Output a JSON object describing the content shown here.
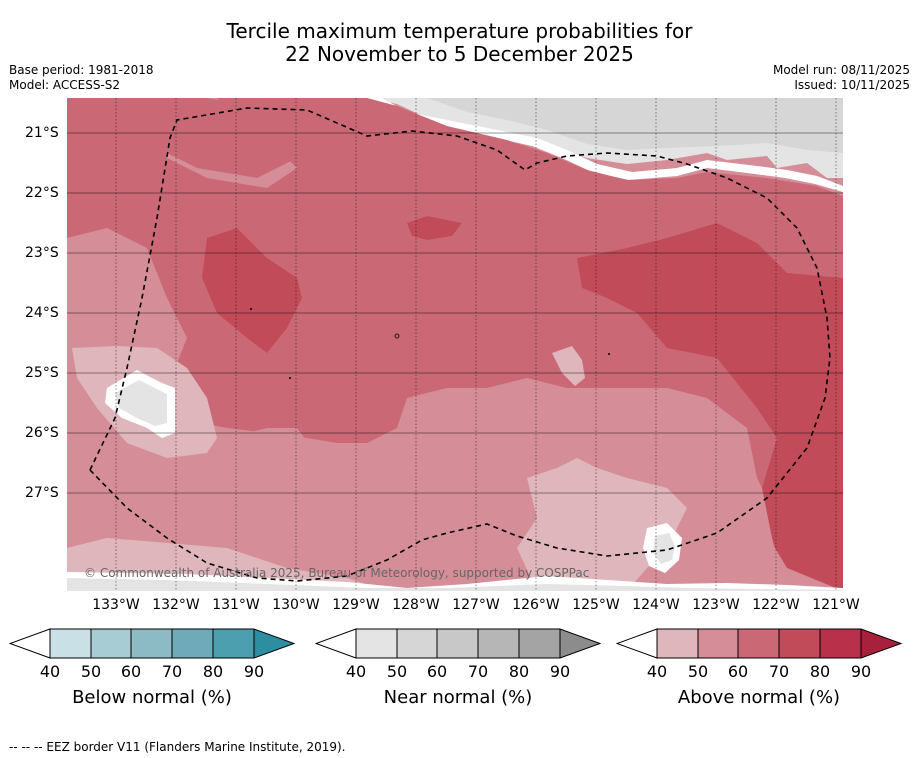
{
  "title": {
    "line1": "Tercile maximum temperature probabilities for",
    "line2": "22 November to 5 December 2025"
  },
  "meta": {
    "base_period": "Base period: 1981-2018",
    "model": "Model: ACCESS-S2",
    "model_run": "Model run: 08/11/2025",
    "issued": "Issued: 10/11/2025"
  },
  "map": {
    "lat_labels": [
      "21°S",
      "22°S",
      "23°S",
      "24°S",
      "25°S",
      "26°S",
      "27°S"
    ],
    "lon_labels": [
      "133°W",
      "132°W",
      "131°W",
      "130°W",
      "129°W",
      "128°W",
      "127°W",
      "126°W",
      "125°W",
      "124°W",
      "123°W",
      "122°W",
      "121°W"
    ],
    "copyright": "© Commonwealth of Australia 2025, Bureau of Meteorology, supported by COSPPac",
    "colors": {
      "above_40": "#dfb6bc",
      "above_50": "#d58e98",
      "above_60": "#ca6975",
      "above_70": "#c24b5a",
      "near_40": "#e4e4e4",
      "near_50": "#d8d8d8",
      "border": "#000000"
    }
  },
  "colorbars": [
    {
      "label": "Below normal (%)",
      "ticks": [
        "40",
        "50",
        "60",
        "70",
        "80",
        "90"
      ],
      "colors": [
        "#c9e1e6",
        "#a8ccd3",
        "#8cbac5",
        "#6eaab9",
        "#4b9fae",
        "#2d8ea2"
      ]
    },
    {
      "label": "Near normal (%)",
      "ticks": [
        "40",
        "50",
        "60",
        "70",
        "80",
        "90"
      ],
      "colors": [
        "#e4e4e4",
        "#d6d6d6",
        "#c8c8c8",
        "#b6b6b6",
        "#a4a4a4",
        "#8c8c8c"
      ]
    },
    {
      "label": "Above normal (%)",
      "ticks": [
        "40",
        "50",
        "60",
        "70",
        "80",
        "90"
      ],
      "colors": [
        "#dfb6bc",
        "#d58e98",
        "#ca6975",
        "#c24b5a",
        "#b8304a",
        "#a8213c"
      ]
    }
  ],
  "legend_footer": "--  --  -- EEZ border V11 (Flanders Marine Institute, 2019)."
}
